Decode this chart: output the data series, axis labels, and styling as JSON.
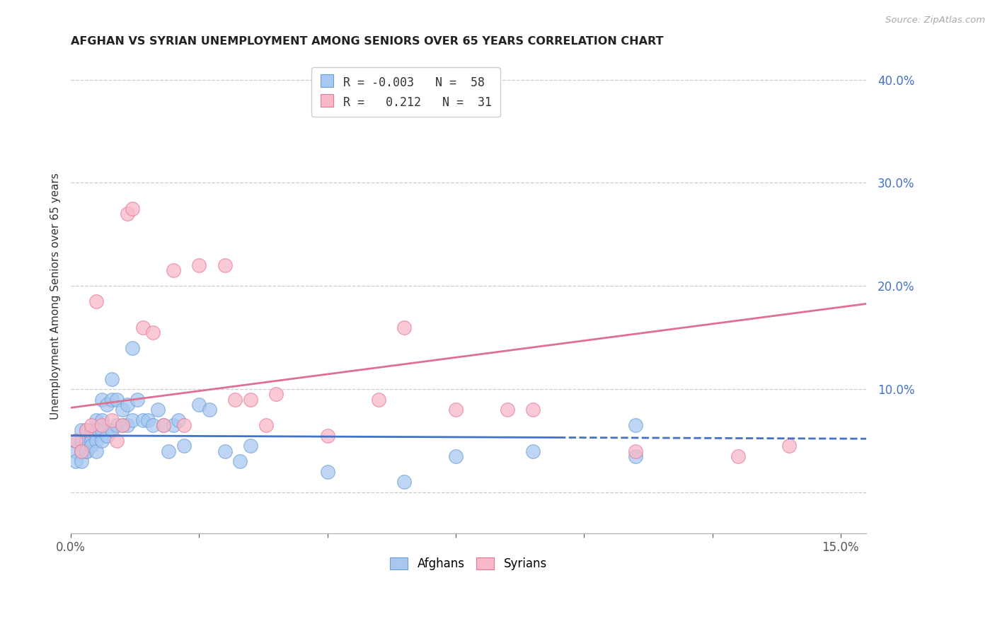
{
  "title": "AFGHAN VS SYRIAN UNEMPLOYMENT AMONG SENIORS OVER 65 YEARS CORRELATION CHART",
  "source": "Source: ZipAtlas.com",
  "ylabel": "Unemployment Among Seniors over 65 years",
  "xlim": [
    0.0,
    0.155
  ],
  "ylim": [
    -0.04,
    0.42
  ],
  "ytick_values": [
    0.0,
    0.1,
    0.2,
    0.3,
    0.4
  ],
  "ytick_labels": [
    "",
    "10.0%",
    "20.0%",
    "30.0%",
    "40.0%"
  ],
  "afghan_R": -0.003,
  "afghan_N": 58,
  "syrian_R": 0.212,
  "syrian_N": 31,
  "afghan_color": "#a8c8f0",
  "afghan_edge_color": "#6a9fd8",
  "syrian_color": "#f8b8c8",
  "syrian_edge_color": "#e87898",
  "afghan_line_color": "#4472c4",
  "syrian_line_color": "#e07090",
  "right_axis_color": "#4472c4",
  "title_color": "#222222",
  "source_color": "#aaaaaa",
  "tick_color": "#555555",
  "grid_color": "#cccccc",
  "background_color": "#ffffff",
  "legend_afghan_label": "Afghans",
  "legend_syrian_label": "Syrians",
  "afghan_line_intercept": 0.055,
  "afghan_line_slope": -0.02,
  "syrian_line_intercept": 0.082,
  "syrian_line_slope": 0.65,
  "afghan_x": [
    0.001,
    0.001,
    0.001,
    0.002,
    0.002,
    0.002,
    0.002,
    0.003,
    0.003,
    0.003,
    0.003,
    0.003,
    0.004,
    0.004,
    0.004,
    0.004,
    0.005,
    0.005,
    0.005,
    0.005,
    0.006,
    0.006,
    0.006,
    0.006,
    0.007,
    0.007,
    0.008,
    0.008,
    0.008,
    0.009,
    0.009,
    0.01,
    0.01,
    0.011,
    0.011,
    0.012,
    0.012,
    0.013,
    0.014,
    0.015,
    0.016,
    0.017,
    0.018,
    0.019,
    0.02,
    0.021,
    0.022,
    0.025,
    0.027,
    0.03,
    0.033,
    0.035,
    0.05,
    0.065,
    0.075,
    0.09,
    0.11,
    0.11
  ],
  "afghan_y": [
    0.04,
    0.05,
    0.03,
    0.05,
    0.04,
    0.06,
    0.03,
    0.04,
    0.05,
    0.06,
    0.05,
    0.04,
    0.055,
    0.06,
    0.05,
    0.045,
    0.07,
    0.05,
    0.06,
    0.04,
    0.05,
    0.07,
    0.06,
    0.09,
    0.055,
    0.085,
    0.06,
    0.09,
    0.11,
    0.065,
    0.09,
    0.08,
    0.065,
    0.085,
    0.065,
    0.07,
    0.14,
    0.09,
    0.07,
    0.07,
    0.065,
    0.08,
    0.065,
    0.04,
    0.065,
    0.07,
    0.045,
    0.085,
    0.08,
    0.04,
    0.03,
    0.045,
    0.02,
    0.01,
    0.035,
    0.04,
    0.035,
    0.065
  ],
  "syrian_x": [
    0.001,
    0.002,
    0.003,
    0.004,
    0.005,
    0.006,
    0.008,
    0.009,
    0.01,
    0.011,
    0.012,
    0.014,
    0.016,
    0.018,
    0.02,
    0.022,
    0.025,
    0.03,
    0.032,
    0.035,
    0.038,
    0.04,
    0.05,
    0.06,
    0.065,
    0.075,
    0.085,
    0.09,
    0.11,
    0.13,
    0.14
  ],
  "syrian_y": [
    0.05,
    0.04,
    0.06,
    0.065,
    0.185,
    0.065,
    0.07,
    0.05,
    0.065,
    0.27,
    0.275,
    0.16,
    0.155,
    0.065,
    0.215,
    0.065,
    0.22,
    0.22,
    0.09,
    0.09,
    0.065,
    0.095,
    0.055,
    0.09,
    0.16,
    0.08,
    0.08,
    0.08,
    0.04,
    0.035,
    0.045
  ]
}
